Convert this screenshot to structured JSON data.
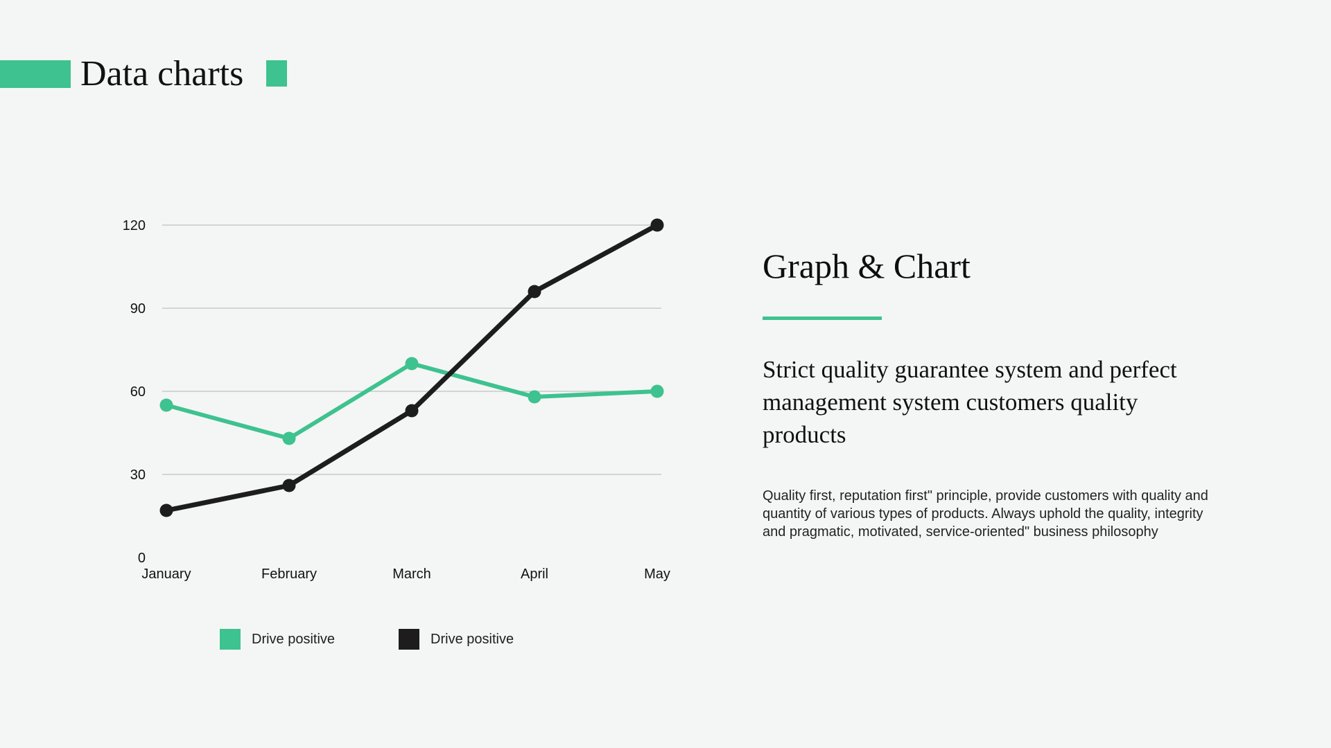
{
  "page": {
    "title": "Data charts",
    "background": "#f4f6f5",
    "accent": "#3ec28f",
    "dark": "#1d1d1d"
  },
  "right": {
    "heading": "Graph & Chart",
    "subtitle": "Strict quality guarantee system and perfect management system customers quality products",
    "body": "Quality first, reputation first\" principle, provide customers with quality and quantity of various types of products. Always uphold the  quality, integrity and pragmatic, motivated, service-oriented\" business philosophy"
  },
  "chart_data": {
    "type": "line",
    "categories": [
      "January",
      "February",
      "March",
      "April",
      "May"
    ],
    "series": [
      {
        "name": "Drive positive",
        "color": "#3ec28f",
        "values": [
          55,
          43,
          70,
          58,
          60
        ]
      },
      {
        "name": "Drive positive",
        "color": "#1d1d1d",
        "values": [
          17,
          26,
          53,
          96,
          120
        ]
      }
    ],
    "ylim": [
      0,
      120
    ],
    "yticks": [
      0,
      30,
      60,
      90,
      120
    ],
    "grid": true,
    "gridline_color": "#c7cac9",
    "legend_position": "bottom"
  }
}
